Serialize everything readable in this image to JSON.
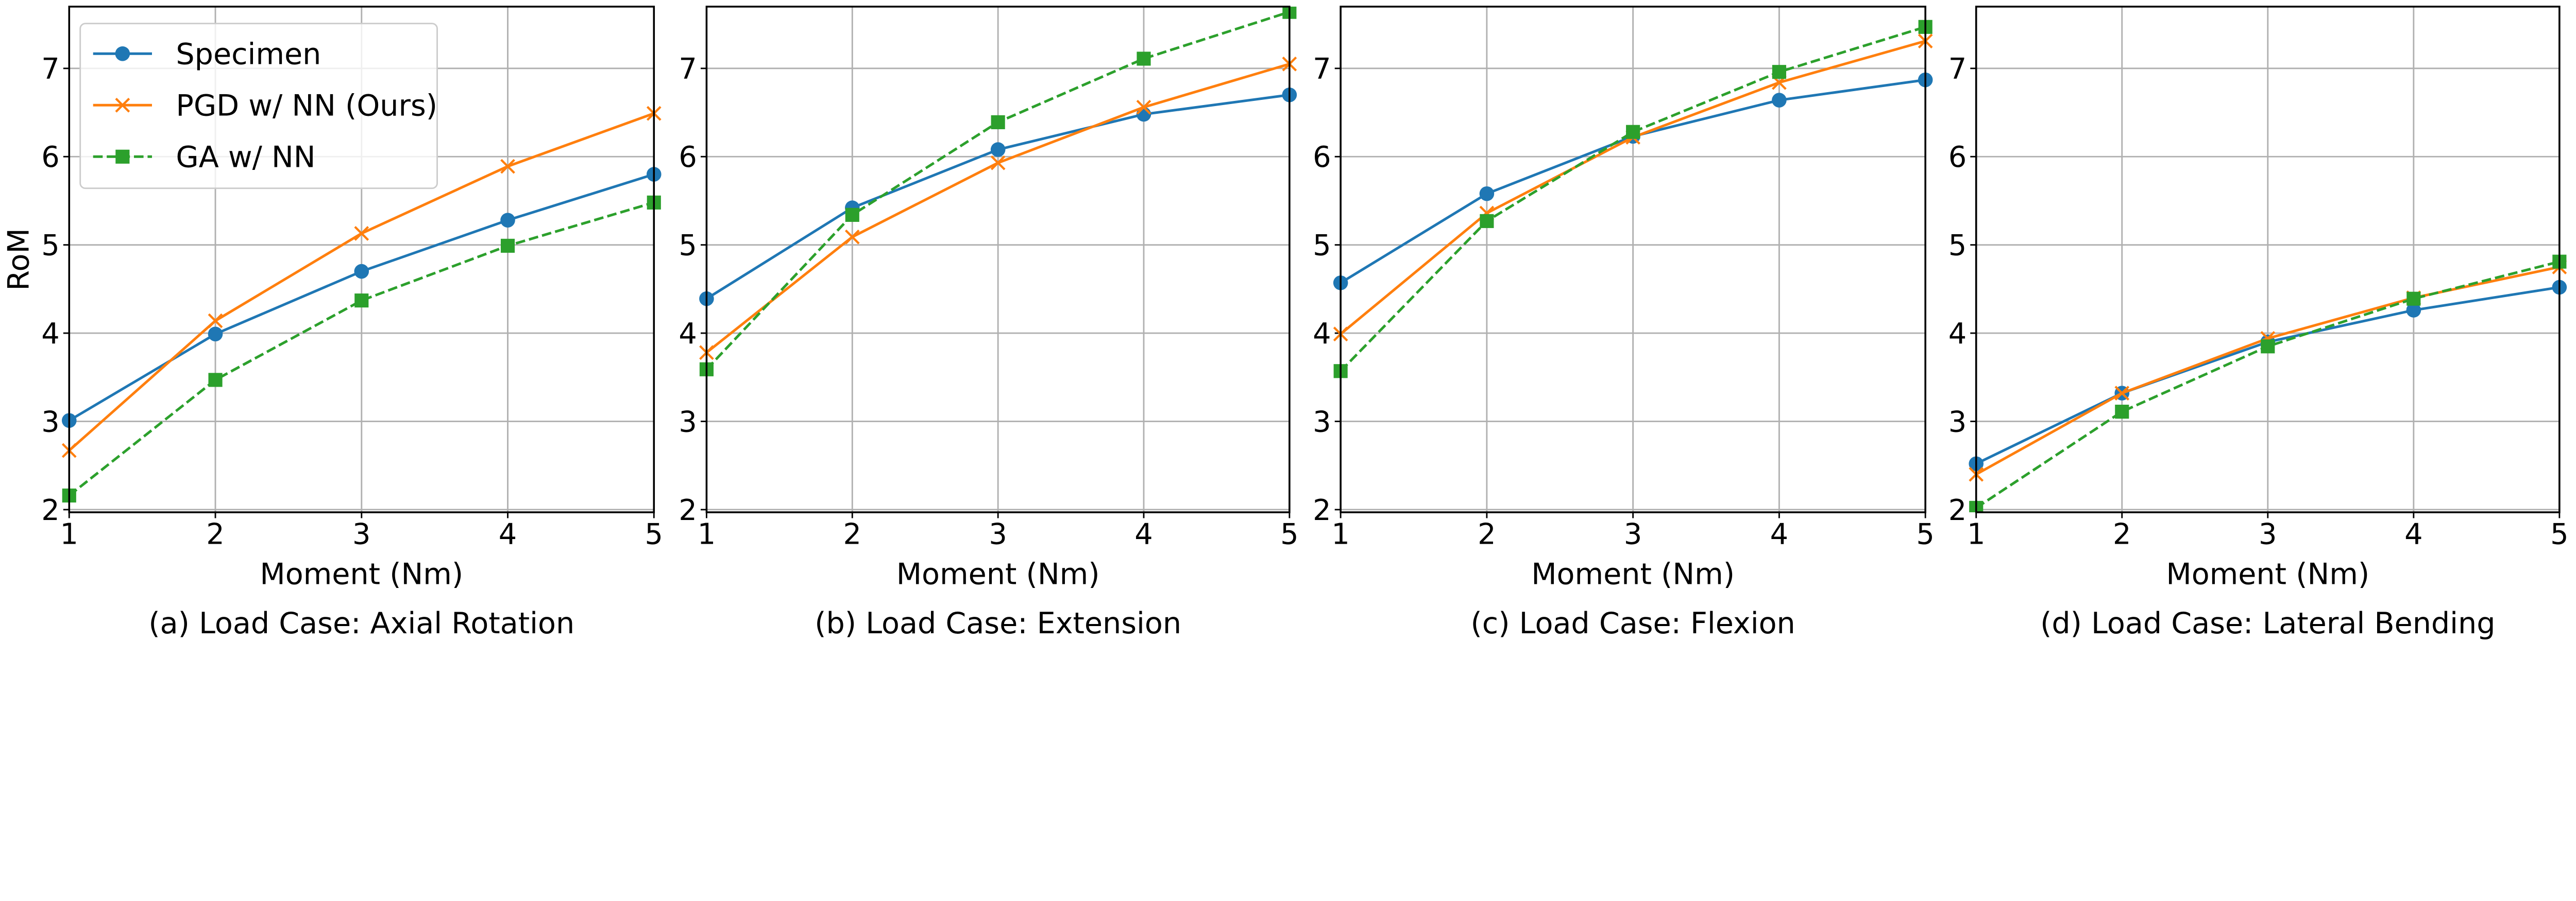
{
  "chart_data": [
    {
      "type": "line",
      "caption": "(a) Load Case: Axial Rotation",
      "xlabel": "Moment (Nm)",
      "ylabel": "RoM",
      "x": [
        1,
        2,
        3,
        4,
        5
      ],
      "xlim": [
        1,
        5
      ],
      "ylim": [
        1.97,
        7.7
      ],
      "xticks": [
        "1",
        "2",
        "3",
        "4",
        "5"
      ],
      "yticks": [
        "2",
        "3",
        "4",
        "5",
        "6",
        "7"
      ],
      "grid": true,
      "legend": "upper-left",
      "series": [
        {
          "name": "Specimen",
          "values": [
            3.01,
            3.99,
            4.7,
            5.28,
            5.8
          ]
        },
        {
          "name": "PGD w/ NN (Ours)",
          "values": [
            2.67,
            4.14,
            5.13,
            5.89,
            6.49
          ]
        },
        {
          "name": "GA w/ NN",
          "values": [
            2.16,
            3.47,
            4.37,
            4.99,
            5.48
          ]
        }
      ]
    },
    {
      "type": "line",
      "caption": "(b) Load Case: Extension",
      "xlabel": "Moment (Nm)",
      "ylabel": "",
      "x": [
        1,
        2,
        3,
        4,
        5
      ],
      "xlim": [
        1,
        5
      ],
      "ylim": [
        1.97,
        7.7
      ],
      "xticks": [
        "1",
        "2",
        "3",
        "4",
        "5"
      ],
      "yticks": [
        "2",
        "3",
        "4",
        "5",
        "6",
        "7"
      ],
      "grid": true,
      "series": [
        {
          "name": "Specimen",
          "values": [
            4.39,
            5.42,
            6.08,
            6.48,
            6.7
          ]
        },
        {
          "name": "PGD w/ NN (Ours)",
          "values": [
            3.78,
            5.09,
            5.93,
            6.56,
            7.05
          ]
        },
        {
          "name": "GA w/ NN",
          "values": [
            3.59,
            5.34,
            6.39,
            7.11,
            7.64
          ]
        }
      ]
    },
    {
      "type": "line",
      "caption": "(c) Load Case: Flexion",
      "xlabel": "Moment (Nm)",
      "ylabel": "",
      "x": [
        1,
        2,
        3,
        4,
        5
      ],
      "xlim": [
        1,
        5
      ],
      "ylim": [
        1.97,
        7.7
      ],
      "xticks": [
        "1",
        "2",
        "3",
        "4",
        "5"
      ],
      "yticks": [
        "2",
        "3",
        "4",
        "5",
        "6",
        "7"
      ],
      "grid": true,
      "series": [
        {
          "name": "Specimen",
          "values": [
            4.57,
            5.58,
            6.23,
            6.64,
            6.87
          ]
        },
        {
          "name": "PGD w/ NN (Ours)",
          "values": [
            3.99,
            5.36,
            6.22,
            6.84,
            7.31
          ]
        },
        {
          "name": "GA w/ NN",
          "values": [
            3.57,
            5.27,
            6.28,
            6.96,
            7.47
          ]
        }
      ]
    },
    {
      "type": "line",
      "caption": "(d) Load Case: Lateral Bending",
      "xlabel": "Moment (Nm)",
      "ylabel": "",
      "x": [
        1,
        2,
        3,
        4,
        5
      ],
      "xlim": [
        1,
        5
      ],
      "ylim": [
        1.97,
        7.7
      ],
      "xticks": [
        "1",
        "2",
        "3",
        "4",
        "5"
      ],
      "yticks": [
        "2",
        "3",
        "4",
        "5",
        "6",
        "7"
      ],
      "grid": true,
      "series": [
        {
          "name": "Specimen",
          "values": [
            2.52,
            3.32,
            3.9,
            4.26,
            4.52
          ]
        },
        {
          "name": "PGD w/ NN (Ours)",
          "values": [
            2.4,
            3.32,
            3.94,
            4.4,
            4.75
          ]
        },
        {
          "name": "GA w/ NN",
          "values": [
            2.02,
            3.11,
            3.85,
            4.39,
            4.81
          ]
        }
      ]
    }
  ],
  "series_styles": [
    {
      "color": "#1f77b4",
      "marker": "circle",
      "line": "solid"
    },
    {
      "color": "#ff7f0e",
      "marker": "x",
      "line": "solid"
    },
    {
      "color": "#2ca02c",
      "marker": "square",
      "line": "dashed"
    }
  ]
}
